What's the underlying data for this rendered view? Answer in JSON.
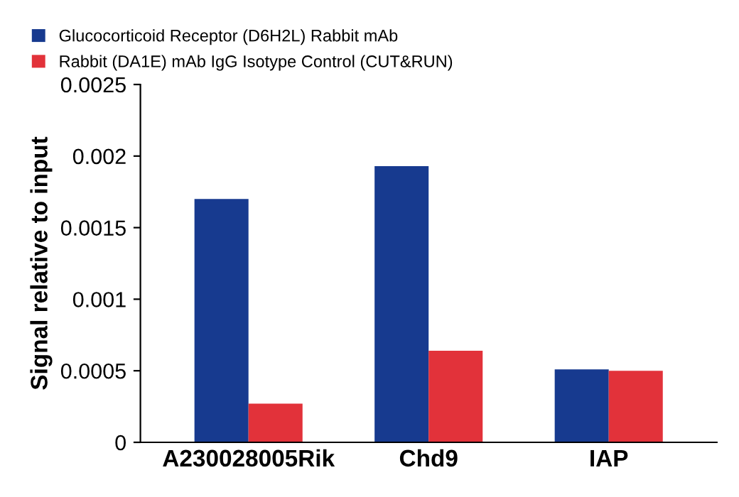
{
  "chart_data": {
    "type": "bar",
    "ylabel": "Signal relative to input",
    "categories": [
      "A230028005Rik",
      "Chd9",
      "IAP"
    ],
    "series": [
      {
        "name": "Glucocorticoid Receptor (D6H2L) Rabbit mAb",
        "color": "#173a8f",
        "values": [
          0.0017,
          0.00193,
          0.00051
        ]
      },
      {
        "name": "Rabbit (DA1E) mAb IgG Isotype Control (CUT&RUN)",
        "color": "#e2323a",
        "values": [
          0.00027,
          0.00064,
          0.0005
        ]
      }
    ],
    "ylim": [
      0,
      0.0025
    ],
    "yticks": [
      0,
      0.0005,
      0.001,
      0.0015,
      0.002,
      0.0025
    ],
    "grid": false,
    "legend": "top"
  }
}
